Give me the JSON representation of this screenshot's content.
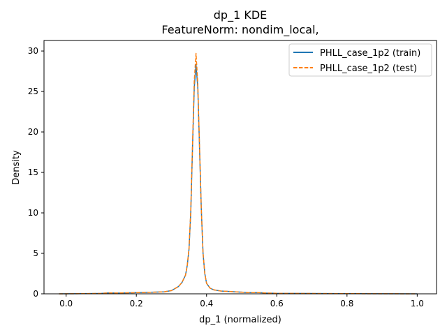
{
  "chart_data": {
    "type": "line",
    "title": "dp_1 KDE",
    "subtitle": "FeatureNorm: nondim_local,",
    "xlabel": "dp_1 (normalized)",
    "ylabel": "Density",
    "xlim": [
      -0.063,
      1.055
    ],
    "ylim": [
      0,
      31.3
    ],
    "xticks": [
      0.0,
      0.2,
      0.4,
      0.6,
      0.8,
      1.0
    ],
    "xtick_labels": [
      "0.0",
      "0.2",
      "0.4",
      "0.6",
      "0.8",
      "1.0"
    ],
    "yticks": [
      0,
      5,
      10,
      15,
      20,
      25,
      30
    ],
    "ytick_labels": [
      "0",
      "5",
      "10",
      "15",
      "20",
      "25",
      "30"
    ],
    "grid": false,
    "legend_position": "top-right",
    "series": [
      {
        "name": "PHLL_case_1p2 (train)",
        "color": "#1f77b4",
        "style": "solid",
        "x": [
          -0.02,
          0.05,
          0.1,
          0.12,
          0.15,
          0.2,
          0.25,
          0.28,
          0.3,
          0.32,
          0.33,
          0.34,
          0.345,
          0.35,
          0.355,
          0.36,
          0.365,
          0.37,
          0.375,
          0.38,
          0.385,
          0.39,
          0.395,
          0.4,
          0.41,
          0.42,
          0.44,
          0.46,
          0.48,
          0.5,
          0.52,
          0.55,
          0.57,
          0.6,
          0.7,
          0.8,
          0.9,
          1.0
        ],
        "y": [
          0.0,
          0.02,
          0.05,
          0.12,
          0.1,
          0.15,
          0.2,
          0.25,
          0.4,
          0.9,
          1.4,
          2.3,
          3.5,
          5.5,
          10.0,
          18.0,
          25.5,
          28.3,
          25.5,
          18.0,
          10.5,
          5.0,
          2.5,
          1.3,
          0.7,
          0.5,
          0.35,
          0.3,
          0.25,
          0.2,
          0.15,
          0.15,
          0.1,
          0.06,
          0.04,
          0.02,
          0.01,
          0.0
        ]
      },
      {
        "name": "PHLL_case_1p2 (test)",
        "color": "#ff7f0e",
        "style": "dashed",
        "x": [
          -0.02,
          0.05,
          0.1,
          0.12,
          0.15,
          0.2,
          0.25,
          0.28,
          0.3,
          0.32,
          0.33,
          0.34,
          0.345,
          0.35,
          0.355,
          0.36,
          0.365,
          0.37,
          0.375,
          0.38,
          0.385,
          0.39,
          0.395,
          0.4,
          0.41,
          0.42,
          0.44,
          0.46,
          0.48,
          0.5,
          0.52,
          0.55,
          0.57,
          0.6,
          0.7,
          0.8,
          0.9,
          1.0
        ],
        "y": [
          0.0,
          0.02,
          0.05,
          0.12,
          0.1,
          0.15,
          0.2,
          0.25,
          0.4,
          0.9,
          1.4,
          2.3,
          3.5,
          5.6,
          10.3,
          18.5,
          26.3,
          29.7,
          26.0,
          18.2,
          10.5,
          5.0,
          2.5,
          1.3,
          0.7,
          0.5,
          0.35,
          0.3,
          0.25,
          0.2,
          0.15,
          0.15,
          0.1,
          0.06,
          0.04,
          0.02,
          0.01,
          0.0
        ]
      }
    ]
  }
}
